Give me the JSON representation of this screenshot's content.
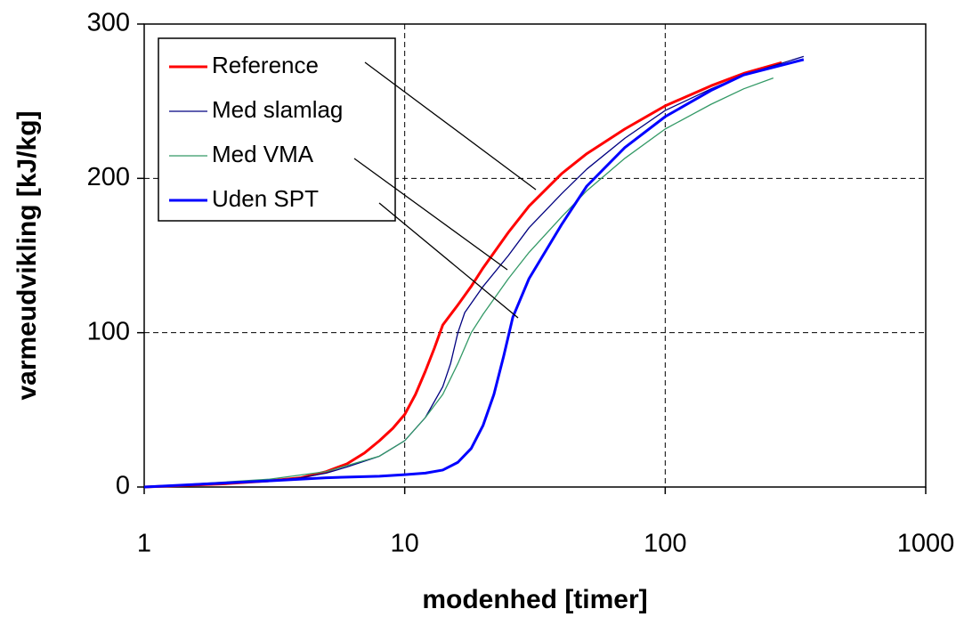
{
  "chart_data": {
    "type": "line",
    "xlabel": "modenhed [timer]",
    "ylabel": "varmeudvikling [kJ/kg]",
    "xscale": "log",
    "xlim": [
      1,
      1000
    ],
    "ylim": [
      0,
      300
    ],
    "xticks": [
      1,
      10,
      100,
      1000
    ],
    "yticks": [
      0,
      100,
      200,
      300
    ],
    "grid": true,
    "legend": "upper left",
    "series": [
      {
        "name": "Reference",
        "color": "#ff0000",
        "width": 3,
        "x": [
          1,
          2,
          3,
          4,
          5,
          6,
          7,
          8,
          9,
          10,
          11,
          12,
          13,
          14,
          16,
          18,
          20,
          25,
          30,
          40,
          50,
          70,
          100,
          150,
          200,
          280
        ],
        "values": [
          0,
          2,
          4,
          6,
          10,
          15,
          22,
          30,
          38,
          47,
          60,
          75,
          90,
          105,
          118,
          130,
          142,
          165,
          182,
          203,
          216,
          232,
          247,
          260,
          268,
          275
        ]
      },
      {
        "name": "Med slamlag",
        "color": "#000080",
        "width": 1.3,
        "x": [
          1,
          2,
          3,
          4,
          5,
          6,
          8,
          10,
          12,
          14,
          15,
          16,
          17,
          20,
          25,
          30,
          40,
          50,
          70,
          100,
          150,
          200,
          340
        ],
        "values": [
          0,
          2,
          4,
          6,
          9,
          13,
          20,
          30,
          45,
          65,
          80,
          100,
          113,
          130,
          150,
          168,
          190,
          206,
          226,
          244,
          258,
          267,
          279
        ]
      },
      {
        "name": "Med VMA",
        "color": "#339966",
        "width": 1.3,
        "x": [
          1,
          3,
          5,
          8,
          10,
          12,
          14,
          16,
          18,
          20,
          25,
          30,
          40,
          50,
          70,
          100,
          150,
          200,
          260
        ],
        "values": [
          0,
          5,
          10,
          20,
          30,
          45,
          60,
          80,
          100,
          112,
          135,
          152,
          175,
          192,
          213,
          232,
          248,
          258,
          265
        ]
      },
      {
        "name": "Uden SPT",
        "color": "#0000ff",
        "width": 3,
        "x": [
          1,
          3,
          5,
          8,
          10,
          12,
          14,
          16,
          18,
          20,
          22,
          24,
          26,
          30,
          40,
          50,
          70,
          100,
          150,
          200,
          340
        ],
        "values": [
          0,
          4,
          6,
          7,
          8,
          9,
          11,
          16,
          25,
          40,
          60,
          85,
          110,
          135,
          170,
          195,
          220,
          240,
          257,
          267,
          277
        ]
      }
    ]
  }
}
